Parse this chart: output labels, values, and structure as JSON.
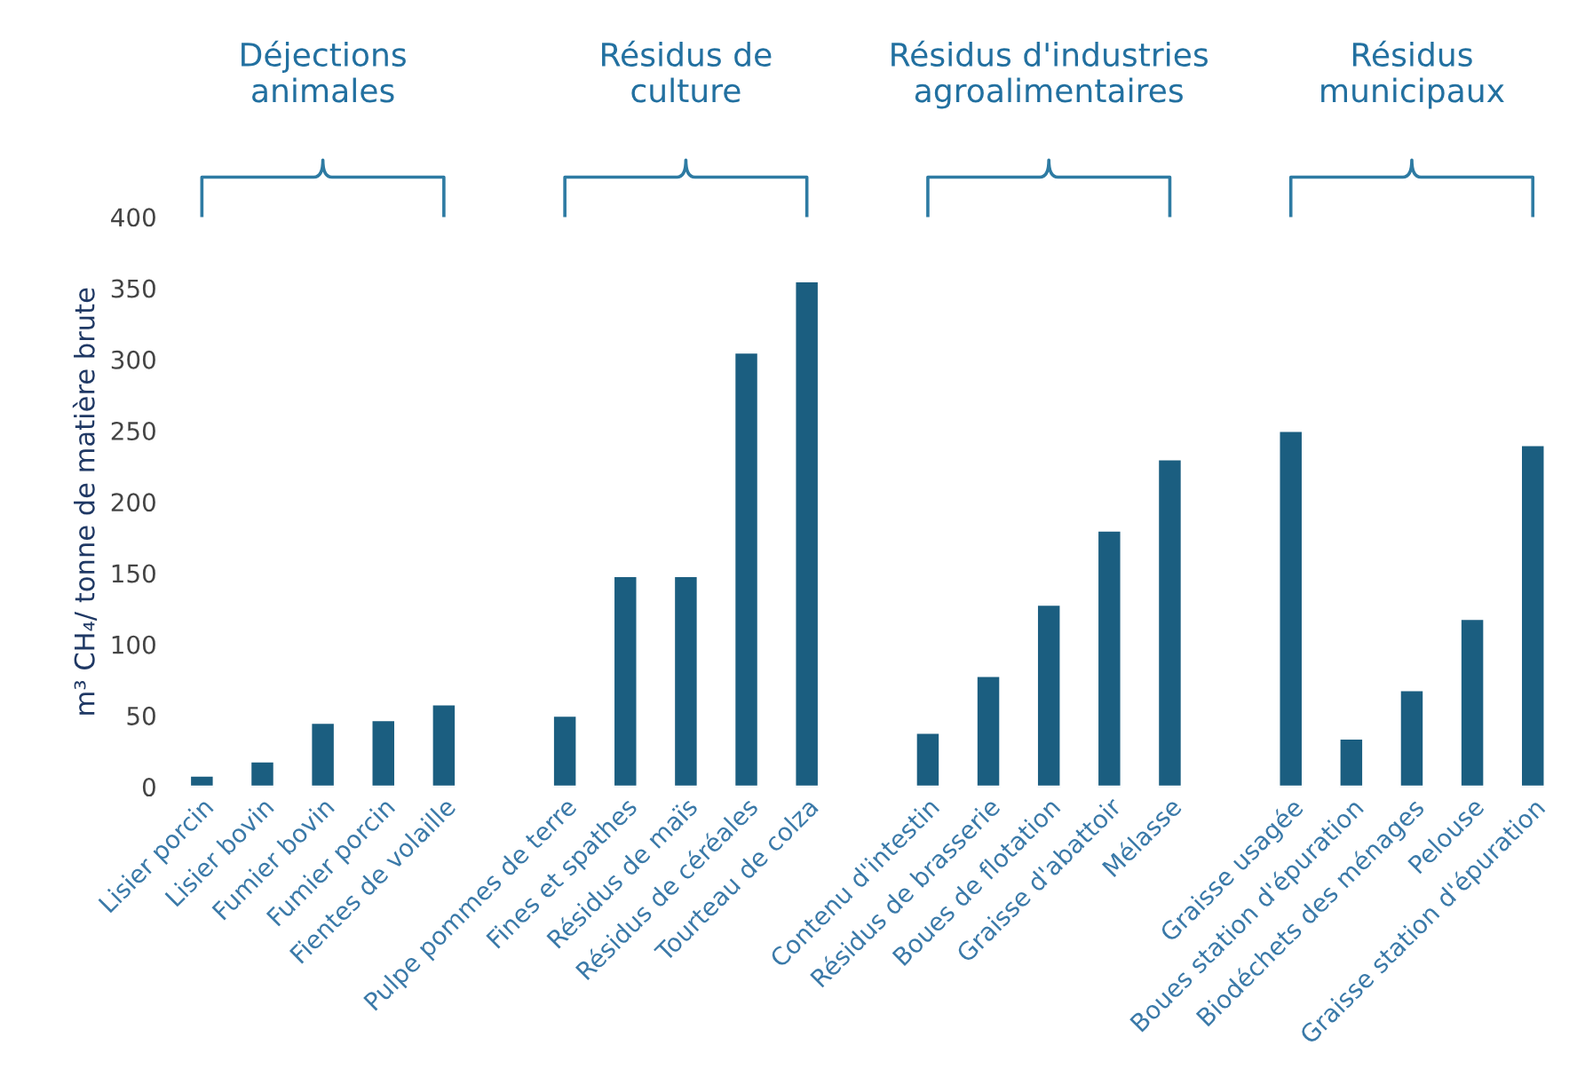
{
  "chart_data": {
    "type": "bar",
    "ylabel": "m³ CH₄/ tonne de matière brute",
    "categories": [
      "Lisier porcin",
      "Lisier bovin",
      "Fumier bovin",
      "Fumier porcin",
      "Fientes de volaille",
      null,
      "Pulpe pommes de terre",
      "Fines et spathes",
      "Résidus de maïs",
      "Résidus de céréales",
      "Tourteau de colza",
      null,
      "Contenu d'intestin",
      "Résidus de brasserie",
      "Boues de flotation",
      "Graisse d'abattoir",
      "Mélasse",
      null,
      "Graisse usagée",
      "Boues station d'épuration",
      "Biodéchets des ménages",
      "Pelouse",
      "Graisse station d'épuration"
    ],
    "values": [
      8,
      18,
      45,
      47,
      58,
      null,
      50,
      148,
      148,
      305,
      355,
      null,
      38,
      78,
      128,
      180,
      230,
      null,
      250,
      34,
      68,
      118,
      240
    ],
    "color": "#1b5e80",
    "ylim": [
      0,
      400
    ],
    "yticks": [
      0,
      50,
      100,
      150,
      200,
      250,
      300,
      350,
      400
    ],
    "grid": false,
    "annotations": [
      "Déjections\nanimales",
      "Résidus de\nculture",
      "Résidus d'industries\nagroalimentaires",
      "Résidus\nmunicipaux"
    ]
  }
}
